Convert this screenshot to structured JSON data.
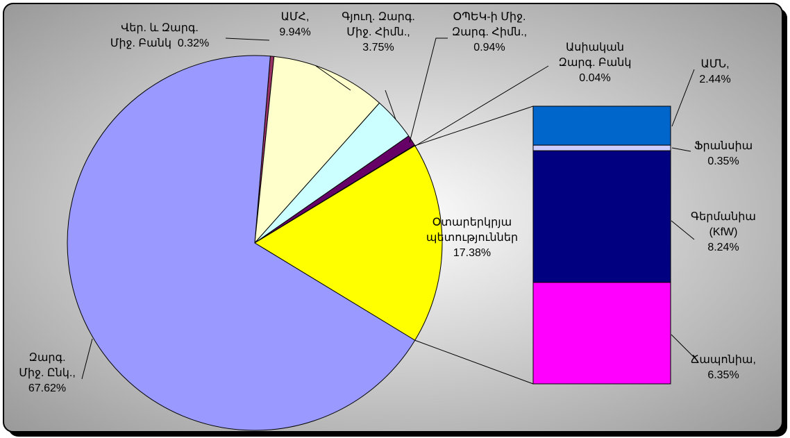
{
  "chart_data": {
    "type": "pie-of-bar",
    "pie": {
      "categories": [
        "Վեր. և Զարգ. Միջ. Բանկ",
        "ԱՄՀ,",
        "Գյուղ. Զարգ. Միջ. Հիմն.,",
        "ՕՊԵԿ-ի Միջ. Զարգ. Հիմն.,",
        "Ասիական Զարգ. Բանկ",
        "Օտարերկրյա պետություններ",
        "Զարգ. Միջ. Ընկ.,"
      ],
      "values": [
        0.32,
        9.94,
        3.75,
        0.94,
        0.04,
        17.38,
        67.62
      ],
      "value_labels": [
        "0.32%",
        "9.94%",
        "3.75%",
        "0.94%",
        "0.04%",
        "17.38%",
        "67.62%"
      ],
      "colors": [
        "#993366",
        "#ffffcc",
        "#ccffff",
        "#660066",
        "#ff8080",
        "#ffff00",
        "#9999ff"
      ]
    },
    "bar": {
      "categories": [
        "ԱՄՆ,",
        "Ֆրանսիա",
        "Գերմանիա (KfW)",
        "Ճապոնիա,"
      ],
      "values": [
        2.44,
        0.35,
        8.24,
        6.35
      ],
      "value_labels": [
        "2.44%",
        "0.35%",
        "8.24%",
        "6.35%"
      ],
      "colors": [
        "#0066cc",
        "#ccccff",
        "#000080",
        "#ff00ff"
      ]
    }
  }
}
